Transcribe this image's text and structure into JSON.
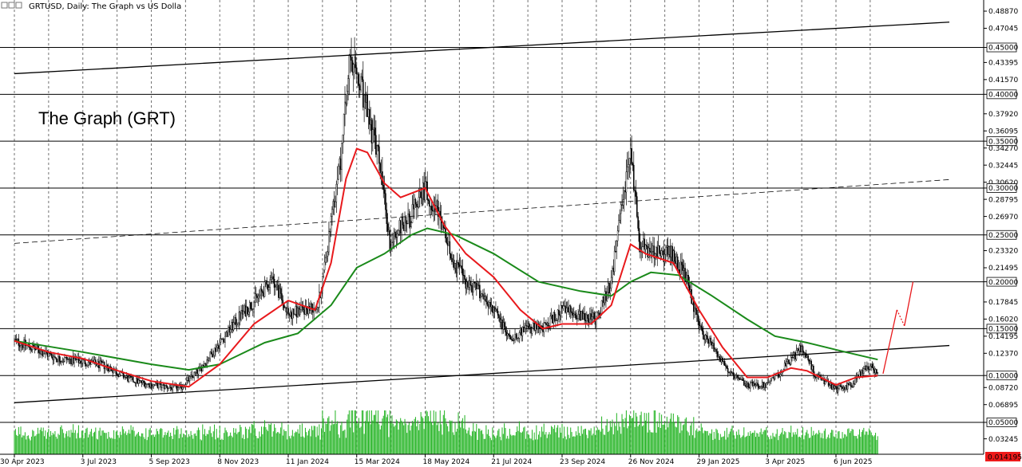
{
  "chart_data": {
    "type": "candlestick",
    "title": "GRTUSD, Daily:  The Graph vs US Dolla",
    "annotation": "The Graph (GRT)",
    "colors": {
      "candles": "#000000",
      "ma_fast": "#e8191c",
      "ma_slow": "#1a8a1a",
      "volume": "#21b321",
      "grid": "#000000",
      "trendline": "#000000",
      "projection": "#e8191c",
      "current_price_bg": "#ee1a1a"
    },
    "y_axis": {
      "scale": "linear",
      "ylim": [
        0.005,
        0.505
      ],
      "tick_labels": [
        "0.48870",
        "0.47045",
        "0.45000",
        "0.43395",
        "0.41570",
        "0.40000",
        "0.37920",
        "0.36095",
        "0.35000",
        "0.34270",
        "0.32445",
        "0.30620",
        "0.30000",
        "0.28795",
        "0.26970",
        "0.25000",
        "0.23320",
        "0.21495",
        "0.20000",
        "0.17845",
        "0.16020",
        "0.15000",
        "0.14195",
        "0.12370",
        "0.10000",
        "0.08720",
        "0.06895",
        "0.05000",
        "0.03245",
        "0.01419"
      ],
      "tick_values": [
        0.4887,
        0.47045,
        0.45,
        0.43395,
        0.4157,
        0.4,
        0.3792,
        0.36095,
        0.35,
        0.3427,
        0.32445,
        0.3062,
        0.3,
        0.28795,
        0.2697,
        0.25,
        0.2332,
        0.21495,
        0.2,
        0.17845,
        0.1602,
        0.15,
        0.14195,
        0.1237,
        0.1,
        0.0872,
        0.06895,
        0.05,
        0.03245,
        0.01419
      ],
      "boxed_labels": [
        "0.45000",
        "0.40000",
        "0.35000",
        "0.30000",
        "0.25000",
        "0.20000",
        "0.15000",
        "0.10000",
        "0.05000"
      ],
      "current_price_label": "0.014195"
    },
    "x_axis": {
      "tick_labels": [
        "30 Apr 2023",
        "3 Jul 2023",
        "5 Sep 2023",
        "8 Nov 2023",
        "11 Jan 2024",
        "15 Mar 2024",
        "18 May 2024",
        "21 Jul 2024",
        "23 Sep 2024",
        "26 Nov 2024",
        "29 Jan 2025",
        "3 Apr 2025",
        "6 Jun 2025"
      ],
      "tick_dates": [
        "2023-04-30",
        "2023-07-03",
        "2023-09-05",
        "2023-11-08",
        "2024-01-11",
        "2024-03-15",
        "2024-05-18",
        "2024-07-21",
        "2024-09-23",
        "2024-11-26",
        "2025-01-29",
        "2025-04-03",
        "2025-06-06"
      ]
    },
    "horizontal_levels": [
      0.45,
      0.4,
      0.35,
      0.3,
      0.25,
      0.2,
      0.15,
      0.1,
      0.05
    ],
    "price_path": [
      [
        "2023-04-30",
        0.137
      ],
      [
        "2023-05-20",
        0.128
      ],
      [
        "2023-06-10",
        0.118
      ],
      [
        "2023-07-03",
        0.115
      ],
      [
        "2023-07-25",
        0.11
      ],
      [
        "2023-08-15",
        0.096
      ],
      [
        "2023-09-05",
        0.09
      ],
      [
        "2023-10-01",
        0.086
      ],
      [
        "2023-10-20",
        0.106
      ],
      [
        "2023-11-08",
        0.135
      ],
      [
        "2023-11-28",
        0.165
      ],
      [
        "2023-12-15",
        0.185
      ],
      [
        "2023-12-28",
        0.205
      ],
      [
        "2024-01-05",
        0.18
      ],
      [
        "2024-01-11",
        0.165
      ],
      [
        "2024-01-25",
        0.17
      ],
      [
        "2024-02-08",
        0.175
      ],
      [
        "2024-02-20",
        0.26
      ],
      [
        "2024-03-01",
        0.34
      ],
      [
        "2024-03-08",
        0.43
      ],
      [
        "2024-03-15",
        0.42
      ],
      [
        "2024-03-25",
        0.38
      ],
      [
        "2024-04-05",
        0.33
      ],
      [
        "2024-04-15",
        0.24
      ],
      [
        "2024-04-25",
        0.26
      ],
      [
        "2024-05-05",
        0.27
      ],
      [
        "2024-05-18",
        0.3
      ],
      [
        "2024-05-28",
        0.28
      ],
      [
        "2024-06-10",
        0.23
      ],
      [
        "2024-06-25",
        0.2
      ],
      [
        "2024-07-08",
        0.19
      ],
      [
        "2024-07-21",
        0.17
      ],
      [
        "2024-08-05",
        0.14
      ],
      [
        "2024-08-20",
        0.15
      ],
      [
        "2024-09-05",
        0.15
      ],
      [
        "2024-09-23",
        0.17
      ],
      [
        "2024-10-10",
        0.165
      ],
      [
        "2024-10-25",
        0.16
      ],
      [
        "2024-11-08",
        0.2
      ],
      [
        "2024-11-18",
        0.28
      ],
      [
        "2024-11-26",
        0.34
      ],
      [
        "2024-12-05",
        0.24
      ],
      [
        "2024-12-18",
        0.23
      ],
      [
        "2025-01-05",
        0.23
      ],
      [
        "2025-01-18",
        0.2
      ],
      [
        "2025-01-29",
        0.15
      ],
      [
        "2025-02-12",
        0.13
      ],
      [
        "2025-02-28",
        0.1
      ],
      [
        "2025-03-15",
        0.09
      ],
      [
        "2025-04-03",
        0.09
      ],
      [
        "2025-04-20",
        0.11
      ],
      [
        "2025-05-05",
        0.13
      ],
      [
        "2025-05-18",
        0.1
      ],
      [
        "2025-06-06",
        0.085
      ],
      [
        "2025-06-20",
        0.09
      ],
      [
        "2025-07-05",
        0.11
      ],
      [
        "2025-07-15",
        0.105
      ]
    ],
    "ma_fast_path": [
      [
        "2023-04-30",
        0.137
      ],
      [
        "2023-06-01",
        0.125
      ],
      [
        "2023-07-03",
        0.118
      ],
      [
        "2023-08-05",
        0.105
      ],
      [
        "2023-09-05",
        0.094
      ],
      [
        "2023-10-10",
        0.088
      ],
      [
        "2023-11-08",
        0.112
      ],
      [
        "2023-12-10",
        0.155
      ],
      [
        "2024-01-11",
        0.18
      ],
      [
        "2024-02-05",
        0.17
      ],
      [
        "2024-02-20",
        0.22
      ],
      [
        "2024-03-05",
        0.31
      ],
      [
        "2024-03-15",
        0.342
      ],
      [
        "2024-03-25",
        0.338
      ],
      [
        "2024-04-10",
        0.305
      ],
      [
        "2024-04-25",
        0.29
      ],
      [
        "2024-05-18",
        0.3
      ],
      [
        "2024-06-05",
        0.26
      ],
      [
        "2024-06-25",
        0.23
      ],
      [
        "2024-07-21",
        0.205
      ],
      [
        "2024-08-15",
        0.17
      ],
      [
        "2024-09-05",
        0.15
      ],
      [
        "2024-09-23",
        0.155
      ],
      [
        "2024-10-20",
        0.155
      ],
      [
        "2024-11-08",
        0.175
      ],
      [
        "2024-11-26",
        0.24
      ],
      [
        "2024-12-10",
        0.23
      ],
      [
        "2025-01-05",
        0.22
      ],
      [
        "2025-01-29",
        0.17
      ],
      [
        "2025-02-20",
        0.13
      ],
      [
        "2025-03-15",
        0.098
      ],
      [
        "2025-04-03",
        0.098
      ],
      [
        "2025-04-25",
        0.108
      ],
      [
        "2025-05-10",
        0.105
      ],
      [
        "2025-06-06",
        0.09
      ],
      [
        "2025-06-25",
        0.098
      ],
      [
        "2025-07-15",
        0.1
      ]
    ],
    "ma_slow_path": [
      [
        "2023-04-30",
        0.137
      ],
      [
        "2023-07-03",
        0.125
      ],
      [
        "2023-09-05",
        0.112
      ],
      [
        "2023-10-10",
        0.106
      ],
      [
        "2023-11-08",
        0.112
      ],
      [
        "2023-12-20",
        0.135
      ],
      [
        "2024-01-20",
        0.145
      ],
      [
        "2024-02-20",
        0.175
      ],
      [
        "2024-03-15",
        0.215
      ],
      [
        "2024-04-10",
        0.23
      ],
      [
        "2024-05-05",
        0.25
      ],
      [
        "2024-05-20",
        0.257
      ],
      [
        "2024-06-15",
        0.25
      ],
      [
        "2024-07-21",
        0.23
      ],
      [
        "2024-09-01",
        0.2
      ],
      [
        "2024-10-10",
        0.19
      ],
      [
        "2024-11-08",
        0.185
      ],
      [
        "2024-11-26",
        0.2
      ],
      [
        "2024-12-15",
        0.21
      ],
      [
        "2025-01-10",
        0.207
      ],
      [
        "2025-02-10",
        0.185
      ],
      [
        "2025-03-15",
        0.16
      ],
      [
        "2025-04-10",
        0.142
      ],
      [
        "2025-05-10",
        0.135
      ],
      [
        "2025-06-15",
        0.125
      ],
      [
        "2025-07-15",
        0.117
      ]
    ],
    "trendlines": [
      {
        "style": "solid",
        "points": [
          [
            "2023-04-30",
            0.422
          ],
          [
            "2025-09-20",
            0.477
          ]
        ]
      },
      {
        "style": "dashed",
        "points": [
          [
            "2023-04-30",
            0.241
          ],
          [
            "2025-09-20",
            0.309
          ]
        ]
      },
      {
        "style": "solid",
        "points": [
          [
            "2023-04-30",
            0.071
          ],
          [
            "2025-09-20",
            0.132
          ]
        ]
      }
    ],
    "projection": {
      "solid_1": [
        [
          "2025-07-20",
          0.102
        ],
        [
          "2025-08-02",
          0.17
        ]
      ],
      "dotted": [
        [
          "2025-08-02",
          0.17
        ],
        [
          "2025-08-09",
          0.153
        ]
      ],
      "solid_2": [
        [
          "2025-08-09",
          0.153
        ],
        [
          "2025-08-17",
          0.2
        ]
      ]
    }
  }
}
